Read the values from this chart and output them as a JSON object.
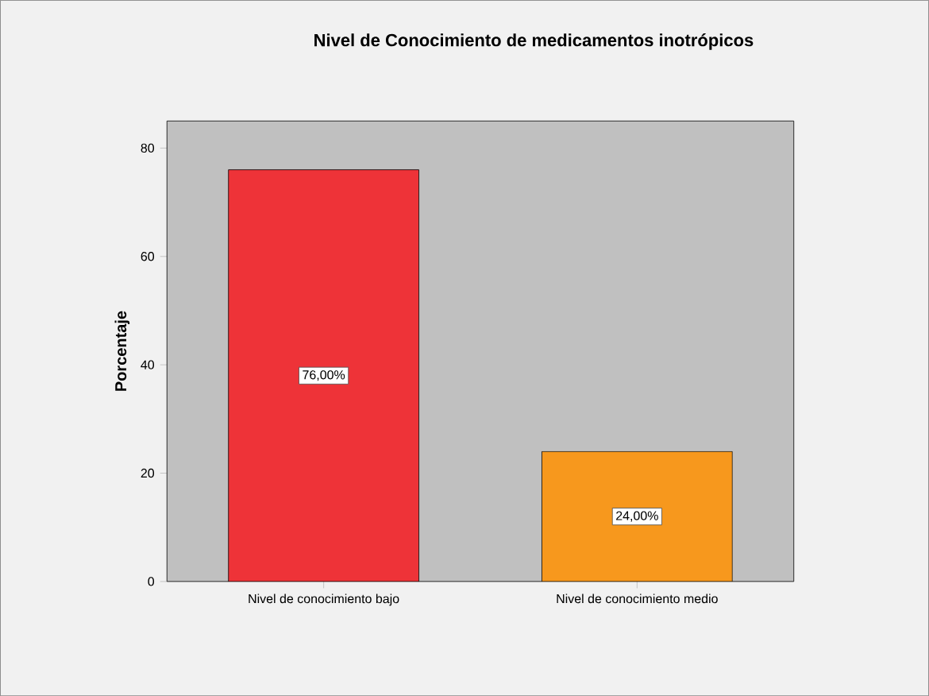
{
  "chart_data": {
    "type": "bar",
    "title": "Nivel de Conocimiento de medicamentos inotrópicos",
    "ylabel": "Porcentaje",
    "categories": [
      "Nivel de conocimiento bajo",
      "Nivel de conocimiento medio"
    ],
    "values": [
      76,
      24
    ],
    "colors": [
      "#ee3338",
      "#f7981d"
    ],
    "value_labels": [
      "76,00%",
      "24,00%"
    ],
    "ylim": [
      0,
      85
    ],
    "yticks": [
      0,
      20,
      40,
      60,
      80
    ]
  }
}
